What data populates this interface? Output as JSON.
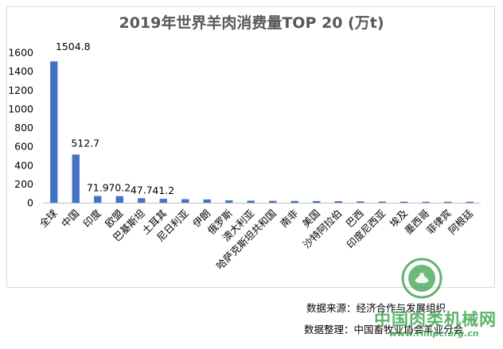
{
  "chart_data": {
    "type": "bar",
    "title": "2019年世界羊肉消费量TOP 20 (万t)",
    "categories": [
      "全球",
      "中国",
      "印度",
      "欧盟",
      "巴基斯坦",
      "土耳其",
      "尼日利亚",
      "伊朗",
      "俄罗斯",
      "澳大利亚",
      "哈萨克斯坦共和国",
      "南非",
      "美国",
      "沙特阿拉伯",
      "巴西",
      "印度尼西亚",
      "埃及",
      "墨西哥",
      "菲律宾",
      "阿根廷"
    ],
    "values": [
      1504.8,
      512.7,
      71.9,
      70.2,
      47.7,
      41.2,
      38,
      35,
      25,
      22,
      20,
      19,
      18,
      17,
      14,
      12,
      11,
      9,
      8,
      7
    ],
    "data_labels": [
      "1504.8",
      "512.7",
      "71.9",
      "70.2",
      "47.7",
      "41.2",
      "",
      "",
      "",
      "",
      "",
      "",
      "",
      "",
      "",
      "",
      "",
      "",
      "",
      ""
    ],
    "yticks": [
      "0",
      "200",
      "400",
      "600",
      "800",
      "1000",
      "1200",
      "1400",
      "1600"
    ],
    "ylim": [
      0,
      1600
    ],
    "grid": false,
    "bar_color": "#4472c4"
  },
  "footer": {
    "source": "数据来源：经济合作与发展组织",
    "editor": "数据整理：中国畜牧业协会羊业分会"
  },
  "watermark": {
    "name": "中国肉类机械网",
    "url": "www.rlmpc.org.cn"
  }
}
